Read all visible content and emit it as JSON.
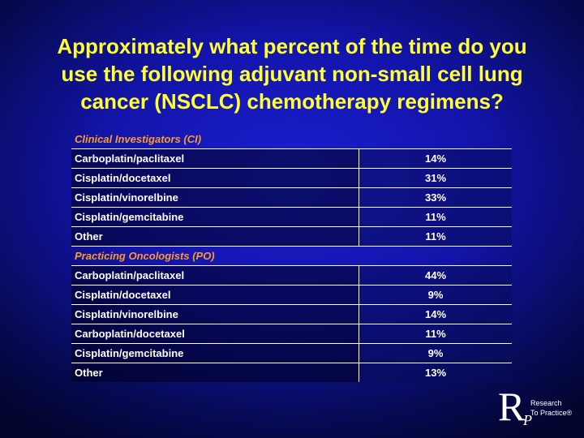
{
  "title_lines": [
    "Approximately what percent of the time do you",
    "use the following adjuvant non-small cell lung",
    "cancer (NSCLC) chemotherapy regimens?"
  ],
  "sections": [
    {
      "heading": "Clinical Investigators (CI)",
      "rows": [
        {
          "regimen": "Carboplatin/paclitaxel",
          "percent": "14%"
        },
        {
          "regimen": "Cisplatin/docetaxel",
          "percent": "31%"
        },
        {
          "regimen": "Cisplatin/vinorelbine",
          "percent": "33%"
        },
        {
          "regimen": "Cisplatin/gemcitabine",
          "percent": "11%"
        },
        {
          "regimen": "Other",
          "percent": "11%"
        }
      ]
    },
    {
      "heading": "Practicing Oncologists (PO)",
      "rows": [
        {
          "regimen": "Carboplatin/paclitaxel",
          "percent": "44%"
        },
        {
          "regimen": "Cisplatin/docetaxel",
          "percent": "9%"
        },
        {
          "regimen": "Cisplatin/vinorelbine",
          "percent": "14%"
        },
        {
          "regimen": "Carboplatin/docetaxel",
          "percent": "11%"
        },
        {
          "regimen": "Cisplatin/gemcitabine",
          "percent": "9%"
        },
        {
          "regimen": "Other",
          "percent": "13%"
        }
      ]
    }
  ],
  "logo": {
    "letter_r": "R",
    "letter_p": "P",
    "line1": "Research",
    "line2": "To Practice®"
  }
}
